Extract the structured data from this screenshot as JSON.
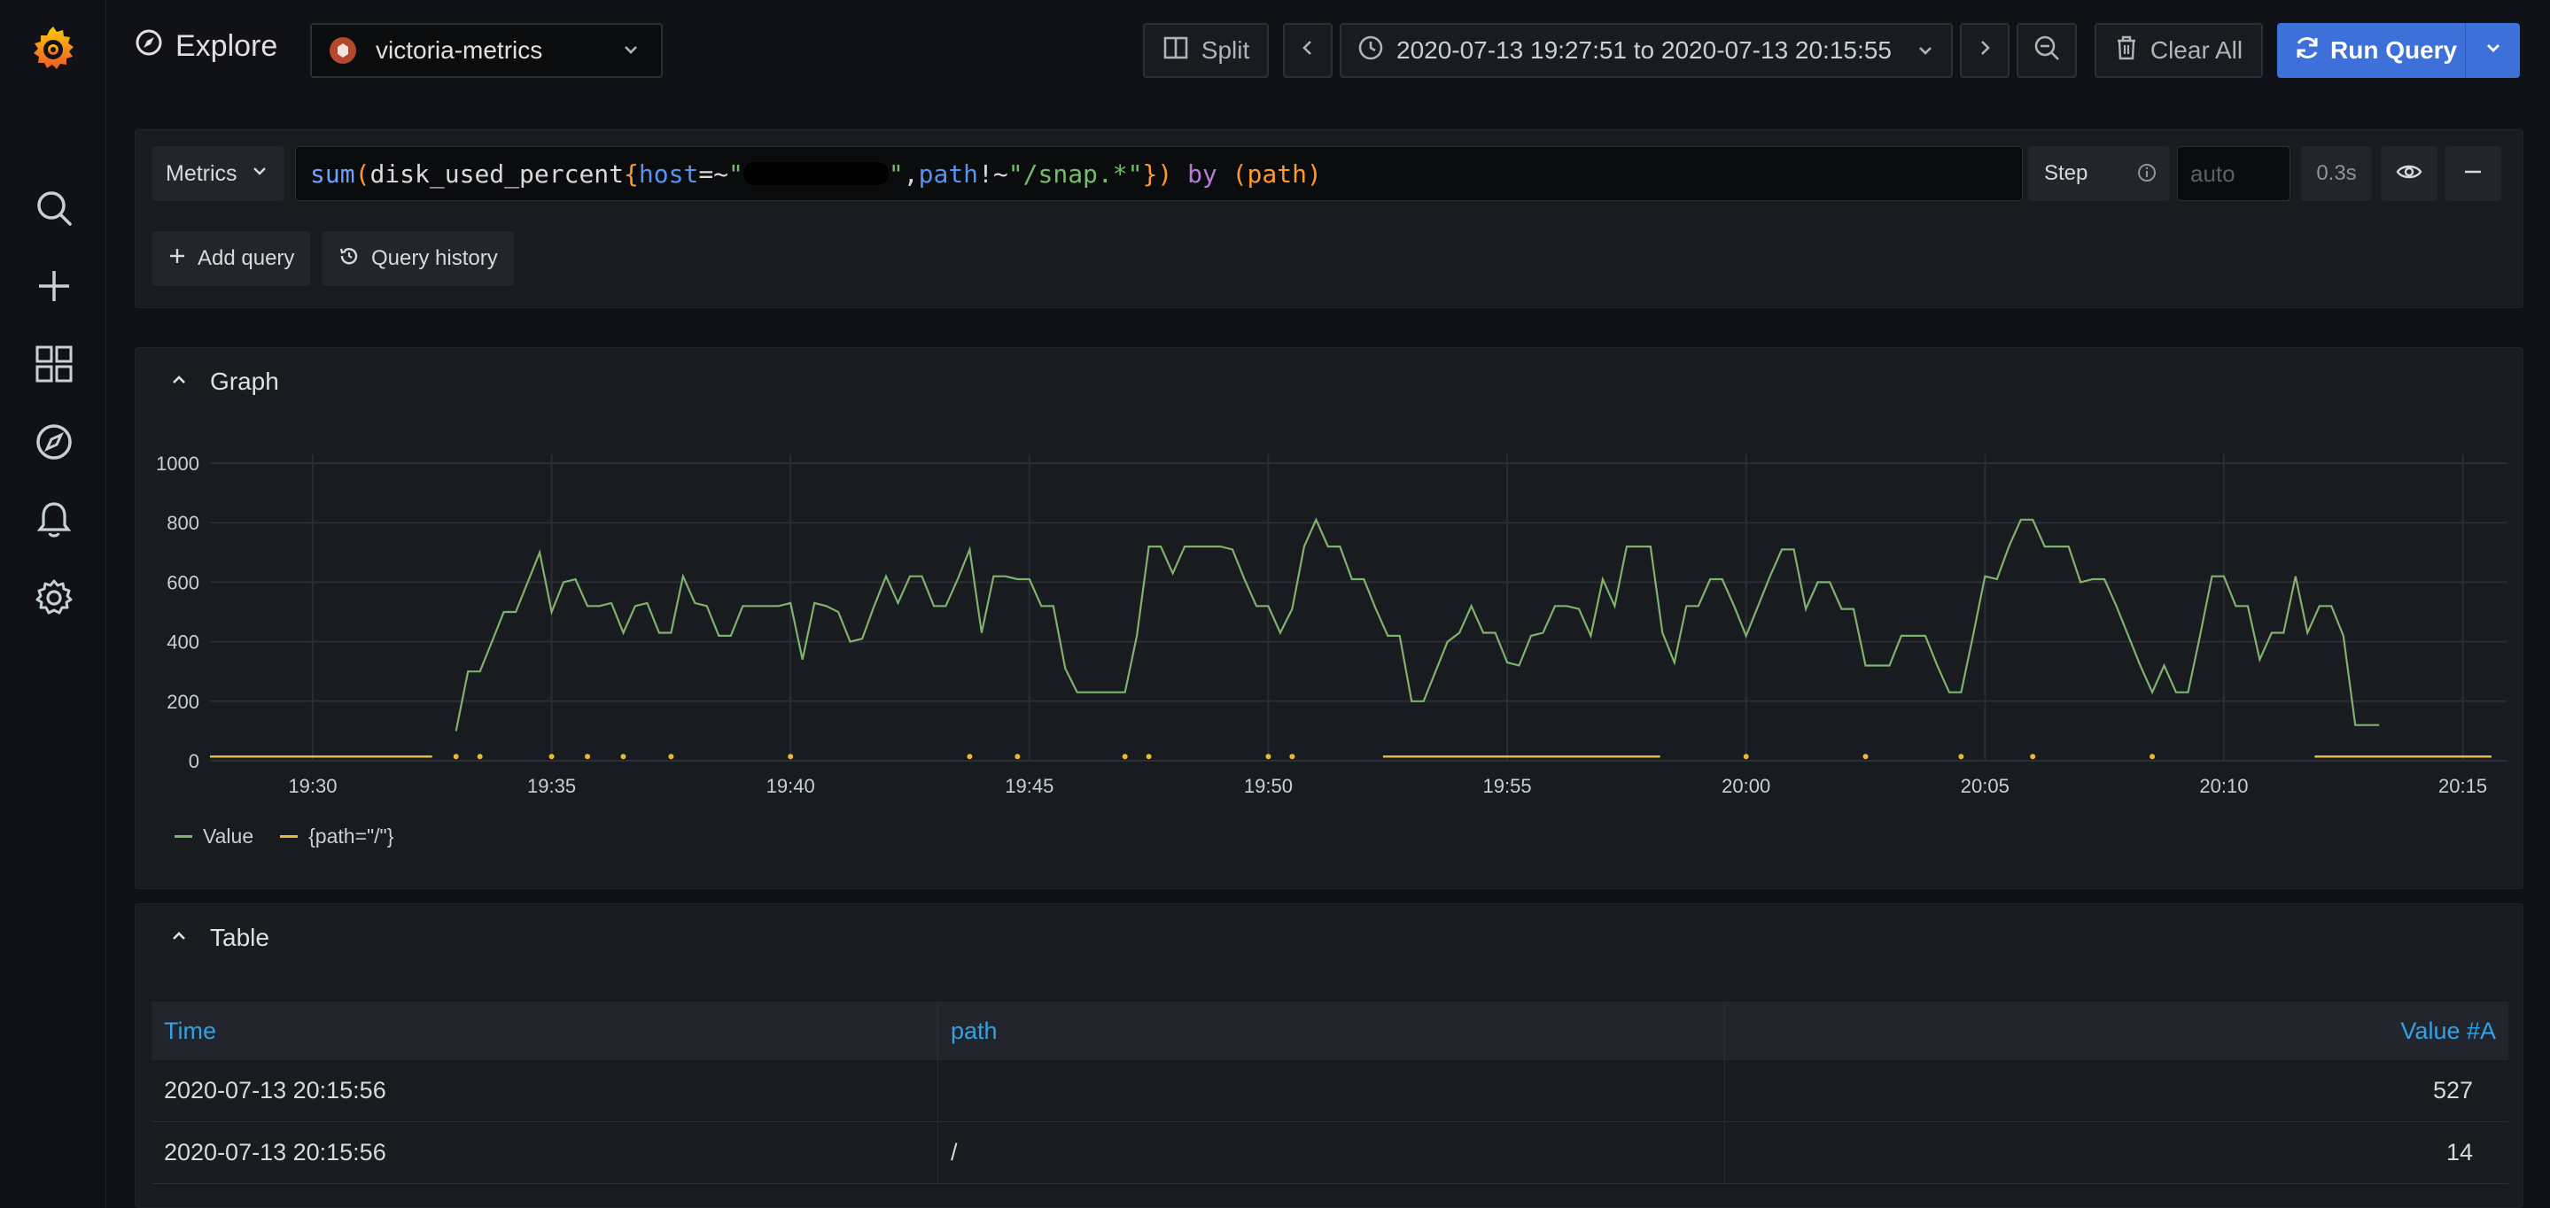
{
  "app": {
    "page_title": "Explore",
    "datasource": "victoria-metrics"
  },
  "toolbar": {
    "split_label": "Split",
    "time_range": "2020-07-13 19:27:51 to 2020-07-13 20:15:55",
    "clear_label": "Clear All",
    "run_label": "Run Query"
  },
  "sidebar": {
    "items": [
      "search",
      "create",
      "dashboards",
      "explore",
      "alerting",
      "configuration"
    ]
  },
  "query": {
    "type_label": "Metrics",
    "expr_parts": {
      "fn": "sum",
      "open": "(",
      "metric": "disk_used_percent",
      "brace_open": "{",
      "label1": "host",
      "op1": "=~",
      "str1_open": "\"",
      "str1_close": "\"",
      "comma": ",",
      "label2": "path",
      "op2": "!~",
      "str2": "\"/snap.*\"",
      "brace_close": "}",
      "close": ")",
      "by": "by",
      "group": "(path)"
    },
    "step_label": "Step",
    "step_placeholder": "auto",
    "timing": "0.3s",
    "add_query_label": "Add query",
    "history_label": "Query history"
  },
  "graph": {
    "title": "Graph",
    "legend": [
      {
        "name": "Value",
        "color": "#7eb26d"
      },
      {
        "name": "{path=\"/\"}",
        "color": "#eab839"
      }
    ]
  },
  "chart_data": {
    "type": "line",
    "x_unit": "time",
    "xticks": [
      "19:30",
      "19:35",
      "19:40",
      "19:45",
      "19:50",
      "19:55",
      "20:00",
      "20:05",
      "20:10",
      "20:15"
    ],
    "yticks": [
      0,
      200,
      400,
      600,
      800,
      1000
    ],
    "ylim": [
      0,
      1000
    ],
    "xlim": [
      "19:27:51",
      "20:15:55"
    ],
    "series": [
      {
        "name": "Value",
        "color": "#7eb26d",
        "x_minutes": [
          33.0,
          33.25,
          33.5,
          33.75,
          34.0,
          34.25,
          34.5,
          34.75,
          35.0,
          35.25,
          35.5,
          35.75,
          36.0,
          36.25,
          36.5,
          36.75,
          37.0,
          37.25,
          37.5,
          37.75,
          38.0,
          38.25,
          38.5,
          38.75,
          39.0,
          39.25,
          39.5,
          39.75,
          40.0,
          40.25,
          40.5,
          40.75,
          41.0,
          41.25,
          41.5,
          41.75,
          42.0,
          42.25,
          42.5,
          42.75,
          43.0,
          43.25,
          43.5,
          43.75,
          44.0,
          44.25,
          44.5,
          44.75,
          45.0,
          45.25,
          45.5,
          45.75,
          46.0,
          46.25,
          46.5,
          46.75,
          47.0,
          47.25,
          47.5,
          47.75,
          48.0,
          48.25,
          48.5,
          48.75,
          49.0,
          49.25,
          49.5,
          49.75,
          50.0,
          50.25,
          50.5,
          50.75,
          51.0,
          51.25,
          51.5,
          51.75,
          52.0,
          52.25,
          52.5,
          52.75,
          53.0,
          53.25,
          53.5,
          53.75,
          54.0,
          54.25,
          54.5,
          54.75,
          55.0,
          55.25,
          55.5,
          55.75,
          56.0,
          56.25,
          56.5,
          56.75,
          57.0,
          57.25,
          57.5,
          57.75,
          58.0,
          58.25,
          58.5,
          58.75,
          59.0,
          59.25,
          59.5,
          59.75,
          60.0,
          60.25,
          60.5,
          60.75,
          61.0,
          61.25,
          61.5,
          61.75,
          62.0,
          62.25,
          62.5,
          62.75,
          63.0,
          63.25,
          63.5,
          63.75,
          64.0,
          64.25,
          64.5,
          64.75,
          65.0,
          65.25,
          65.5,
          65.75,
          66.0,
          66.25,
          66.5,
          66.75,
          67.0,
          67.25,
          67.5,
          67.75,
          68.0,
          68.25,
          68.5,
          68.75,
          69.0,
          69.25,
          69.5,
          69.75,
          70.0,
          70.25,
          70.5,
          70.75,
          71.0,
          71.25,
          71.5,
          71.75,
          72.0,
          72.25,
          72.5,
          72.75,
          73.0,
          73.25
        ],
        "values": [
          100,
          300,
          300,
          400,
          500,
          500,
          600,
          700,
          500,
          600,
          610,
          520,
          520,
          530,
          430,
          520,
          530,
          430,
          430,
          620,
          530,
          520,
          420,
          420,
          520,
          520,
          520,
          520,
          530,
          340,
          530,
          520,
          500,
          400,
          410,
          520,
          620,
          530,
          620,
          620,
          520,
          520,
          610,
          710,
          430,
          620,
          620,
          610,
          610,
          520,
          520,
          310,
          230,
          230,
          230,
          230,
          230,
          420,
          720,
          720,
          630,
          720,
          720,
          720,
          720,
          710,
          610,
          520,
          520,
          430,
          510,
          720,
          810,
          720,
          720,
          610,
          610,
          510,
          420,
          420,
          200,
          200,
          300,
          400,
          430,
          520,
          430,
          430,
          330,
          320,
          420,
          430,
          520,
          520,
          510,
          420,
          610,
          520,
          720,
          720,
          720,
          430,
          330,
          520,
          520,
          610,
          610,
          520,
          420,
          520,
          620,
          710,
          710,
          510,
          600,
          600,
          510,
          510,
          320,
          320,
          320,
          420,
          420,
          420,
          320,
          230,
          230,
          420,
          620,
          610,
          720,
          810,
          810,
          720,
          720,
          720,
          600,
          610,
          610,
          520,
          420,
          320,
          230,
          320,
          230,
          230,
          420,
          620,
          620,
          520,
          520,
          340,
          430,
          430,
          620,
          430,
          520,
          520,
          420,
          120,
          120,
          120
        ]
      },
      {
        "name": "{path=\"/\"}",
        "color": "#eab839",
        "value_segments": [
          {
            "from_min": 27.85,
            "to_min": 32.5,
            "value": 14
          },
          {
            "from_min": 52.4,
            "to_min": 58.2,
            "value": 14
          },
          {
            "from_min": 71.9,
            "to_min": 75.6,
            "value": 14
          }
        ],
        "points_x_minutes": [
          33.0,
          33.5,
          35.0,
          35.75,
          36.5,
          37.5,
          40.0,
          43.75,
          44.75,
          47.0,
          47.5,
          50.0,
          50.5,
          60.0,
          62.5,
          64.5,
          66.0,
          68.5
        ],
        "points_value": 14
      }
    ]
  },
  "table": {
    "title": "Table",
    "columns": [
      "Time",
      "path",
      "Value #A"
    ],
    "rows": [
      {
        "time": "2020-07-13 20:15:56",
        "path": "",
        "value": "527"
      },
      {
        "time": "2020-07-13 20:15:56",
        "path": "/",
        "value": "14"
      }
    ]
  }
}
